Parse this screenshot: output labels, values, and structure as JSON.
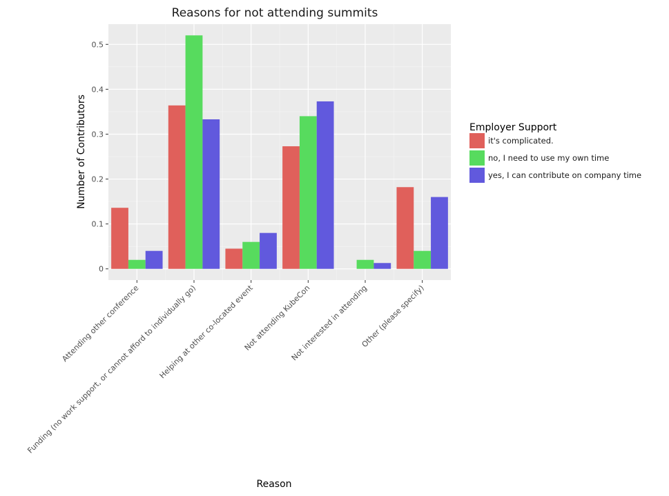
{
  "chart_data": {
    "type": "bar",
    "title": "Reasons for not attending summits",
    "xlabel": "Reason",
    "ylabel": "Number of Contributors",
    "ylim": [
      -0.025,
      0.545
    ],
    "yticks": [
      0,
      0.1,
      0.2,
      0.3,
      0.4,
      0.5
    ],
    "ytick_labels": [
      "0",
      "0.1",
      "0.2",
      "0.3",
      "0.4",
      "0.5"
    ],
    "categories": [
      "Attending other conference",
      "Funding (no work support, or cannot afford to individually go)",
      "Helping at other co-located event",
      "Not attending KubeCon",
      "Not interested in attending",
      "Other (please specify)"
    ],
    "legend": {
      "title": "Employer Support",
      "position": "right"
    },
    "grid": true,
    "series": [
      {
        "name": "it's complicated.",
        "color": "#e0605b",
        "values": [
          0.136,
          0.364,
          0.045,
          0.273,
          0,
          0.182
        ]
      },
      {
        "name": "no, I need to use my own time",
        "color": "#57db5e",
        "values": [
          0.02,
          0.52,
          0.06,
          0.34,
          0.02,
          0.04
        ]
      },
      {
        "name": "yes, I can contribute on company time",
        "color": "#6159dd",
        "values": [
          0.04,
          0.333,
          0.08,
          0.373,
          0.013,
          0.16
        ]
      }
    ]
  }
}
